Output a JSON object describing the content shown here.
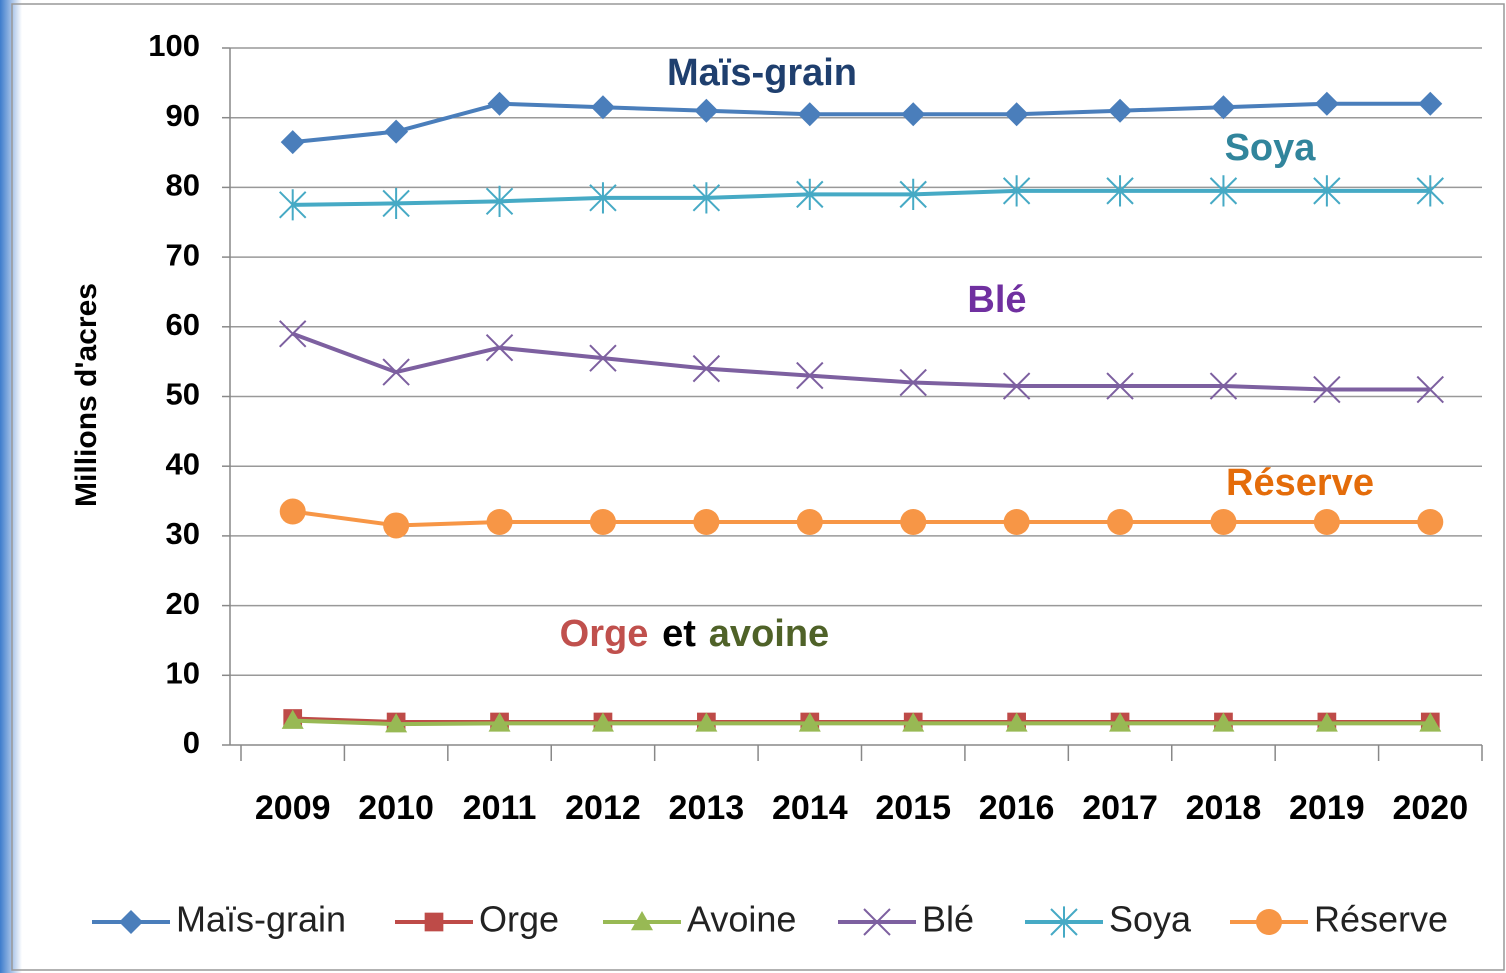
{
  "chart_data": {
    "type": "line",
    "ylabel": "Millions d'acres",
    "categories": [
      "2009",
      "2010",
      "2011",
      "2012",
      "2013",
      "2014",
      "2015",
      "2016",
      "2017",
      "2018",
      "2019",
      "2020"
    ],
    "ylim": [
      0,
      100
    ],
    "yticks": [
      0,
      10,
      20,
      30,
      40,
      50,
      60,
      70,
      80,
      90,
      100
    ],
    "grid": true,
    "legend": "bottom",
    "series": [
      {
        "name": "Maïs-grain",
        "color": "#4a7ebb",
        "marker": "diamond",
        "values": [
          86.5,
          88,
          92,
          91.5,
          91,
          90.5,
          90.5,
          90.5,
          91,
          91.5,
          92,
          92
        ]
      },
      {
        "name": "Orge",
        "color": "#be4b48",
        "marker": "square",
        "values": [
          3.8,
          3.3,
          3.3,
          3.3,
          3.3,
          3.3,
          3.3,
          3.3,
          3.3,
          3.3,
          3.3,
          3.3
        ]
      },
      {
        "name": "Avoine",
        "color": "#98b954",
        "marker": "triangle",
        "values": [
          3.5,
          3,
          3.1,
          3.1,
          3.1,
          3.1,
          3.1,
          3.1,
          3.1,
          3.1,
          3.1,
          3.1
        ]
      },
      {
        "name": "Blé",
        "color": "#7d60a0",
        "marker": "x",
        "values": [
          59,
          53.5,
          57,
          55.5,
          54,
          53,
          52,
          51.5,
          51.5,
          51.5,
          51,
          51
        ]
      },
      {
        "name": "Soya",
        "color": "#46aac5",
        "marker": "star",
        "values": [
          77.5,
          77.7,
          78,
          78.5,
          78.5,
          79,
          79,
          79.5,
          79.5,
          79.5,
          79.5,
          79.5
        ]
      },
      {
        "name": "Réserve",
        "color": "#f79646",
        "marker": "circle",
        "values": [
          33.5,
          31.5,
          32,
          32,
          32,
          32,
          32,
          32,
          32,
          32,
          32,
          32
        ]
      }
    ],
    "annotations": [
      {
        "text": "Maïs-grain",
        "color": "#1f3f6e"
      },
      {
        "text": "Soya",
        "color": "#31859c"
      },
      {
        "text": "Blé",
        "color": "#7030a0"
      },
      {
        "text": "Réserve",
        "color": "#e46c0a"
      },
      {
        "text": "Orge",
        "color": "#c0504d"
      },
      {
        "text": "et",
        "color": "#000000"
      },
      {
        "text": "avoine",
        "color": "#4f6228"
      }
    ]
  }
}
